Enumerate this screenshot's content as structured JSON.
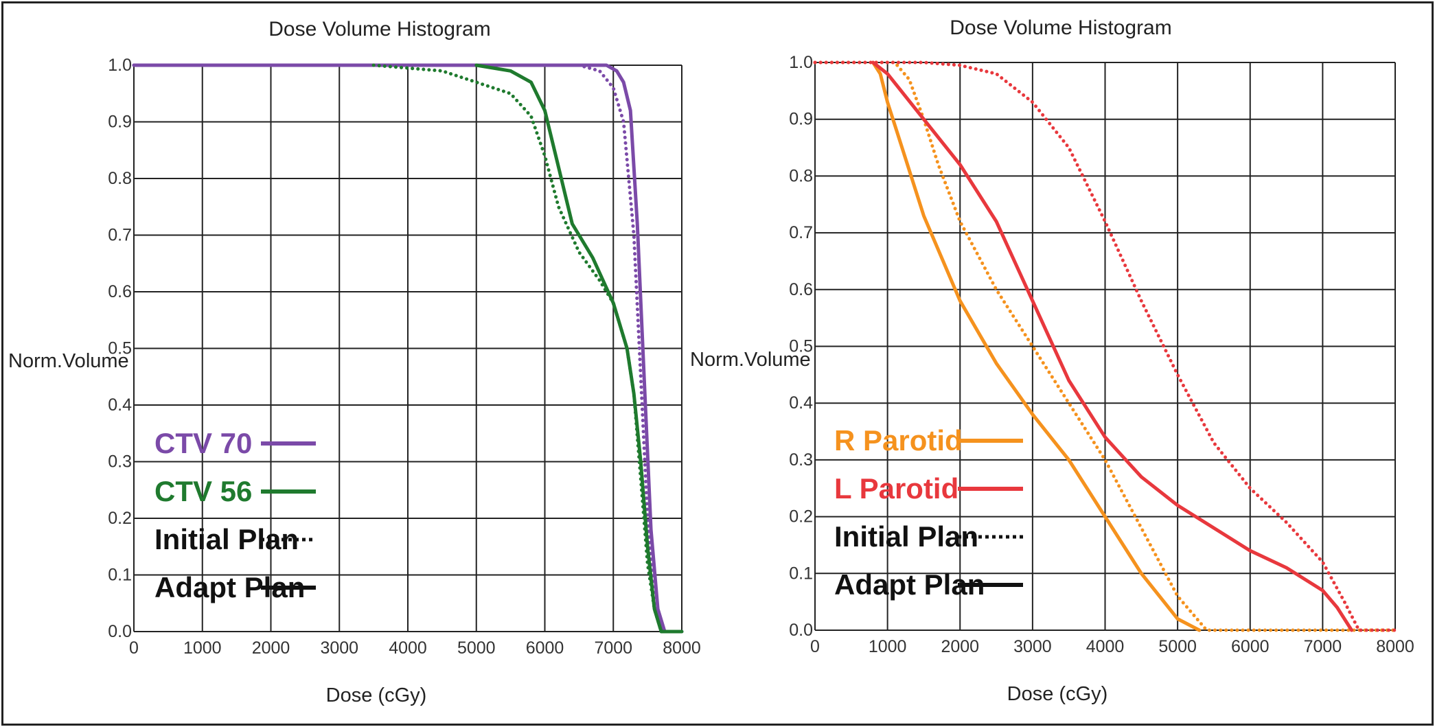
{
  "chart_data": [
    {
      "type": "line",
      "title": "Dose Volume Histogram",
      "xlabel": "Dose (cGy)",
      "ylabel": "Norm.Volume",
      "xlim": [
        0,
        8000
      ],
      "ylim": [
        0,
        1.0
      ],
      "xticks": [
        "0",
        "1000",
        "2000",
        "3000",
        "4000",
        "5000",
        "6000",
        "7000",
        "8000"
      ],
      "yticks": [
        "0.0",
        "0.1",
        "0.2",
        "0.3",
        "0.4",
        "0.5",
        "0.6",
        "0.7",
        "0.8",
        "0.9",
        "1.0"
      ],
      "grid": true,
      "legend": {
        "placement": "bottom-left",
        "entries": [
          {
            "label": "CTV 70",
            "color": "#7b4aa8",
            "style": "solid"
          },
          {
            "label": "CTV 56",
            "color": "#1f7a2e",
            "style": "solid"
          },
          {
            "label": "Initial Plan",
            "color": "#111111",
            "style": "dotted"
          },
          {
            "label": "Adapt Plan",
            "color": "#111111",
            "style": "solid"
          }
        ]
      },
      "series": [
        {
          "structure": "CTV 70",
          "plan": "Initial Plan",
          "color": "#7b4aa8",
          "style": "dotted",
          "x": [
            0,
            6500,
            6800,
            7000,
            7150,
            7300,
            7400,
            7500,
            7600,
            7700,
            8000
          ],
          "y": [
            1.0,
            1.0,
            0.99,
            0.96,
            0.9,
            0.7,
            0.45,
            0.2,
            0.05,
            0.0,
            0.0
          ]
        },
        {
          "structure": "CTV 70",
          "plan": "Adapt Plan",
          "color": "#7b4aa8",
          "style": "solid",
          "x": [
            0,
            6900,
            7050,
            7150,
            7250,
            7350,
            7450,
            7550,
            7650,
            7750,
            8000
          ],
          "y": [
            1.0,
            1.0,
            0.99,
            0.97,
            0.92,
            0.72,
            0.45,
            0.18,
            0.04,
            0.0,
            0.0
          ]
        },
        {
          "structure": "CTV 56",
          "plan": "Initial Plan",
          "color": "#1f7a2e",
          "style": "dotted",
          "x": [
            3500,
            4500,
            5000,
            5500,
            5800,
            6000,
            6200,
            6500,
            6800,
            7000,
            7200,
            7300,
            7400,
            7500,
            7600,
            7700,
            8000
          ],
          "y": [
            1.0,
            0.99,
            0.97,
            0.95,
            0.91,
            0.84,
            0.75,
            0.67,
            0.62,
            0.58,
            0.5,
            0.42,
            0.27,
            0.12,
            0.04,
            0.0,
            0.0
          ]
        },
        {
          "structure": "CTV 56",
          "plan": "Adapt Plan",
          "color": "#1f7a2e",
          "style": "solid",
          "x": [
            5000,
            5500,
            5800,
            6000,
            6200,
            6400,
            6700,
            7000,
            7200,
            7300,
            7400,
            7500,
            7600,
            7700,
            8000
          ],
          "y": [
            1.0,
            0.99,
            0.97,
            0.92,
            0.82,
            0.72,
            0.66,
            0.58,
            0.5,
            0.42,
            0.3,
            0.15,
            0.04,
            0.0,
            0.0
          ]
        }
      ]
    },
    {
      "type": "line",
      "title": "Dose Volume Histogram",
      "xlabel": "Dose (cGy)",
      "ylabel": "Norm.Volume",
      "xlim": [
        0,
        8000
      ],
      "ylim": [
        0,
        1.0
      ],
      "xticks": [
        "0",
        "1000",
        "2000",
        "3000",
        "4000",
        "5000",
        "6000",
        "7000",
        "8000"
      ],
      "yticks": [
        "0.0",
        "0.1",
        "0.2",
        "0.3",
        "0.4",
        "0.5",
        "0.6",
        "0.7",
        "0.8",
        "0.9",
        "1.0"
      ],
      "grid": true,
      "legend": {
        "placement": "bottom-left",
        "entries": [
          {
            "label": "R Parotid",
            "color": "#f5921e",
            "style": "solid"
          },
          {
            "label": "L Parotid",
            "color": "#e8383d",
            "style": "solid"
          },
          {
            "label": "Initial Plan",
            "color": "#111111",
            "style": "dotted"
          },
          {
            "label": "Adapt Plan",
            "color": "#111111",
            "style": "solid"
          }
        ]
      },
      "series": [
        {
          "structure": "R Parotid",
          "plan": "Initial Plan",
          "color": "#f5921e",
          "style": "dotted",
          "x": [
            0,
            1100,
            1300,
            1500,
            1700,
            2000,
            2500,
            3000,
            3500,
            4000,
            4500,
            5000,
            5400,
            8000
          ],
          "y": [
            1.0,
            1.0,
            0.97,
            0.9,
            0.82,
            0.72,
            0.6,
            0.5,
            0.4,
            0.3,
            0.18,
            0.06,
            0.0,
            0.0
          ]
        },
        {
          "structure": "R Parotid",
          "plan": "Adapt Plan",
          "color": "#f5921e",
          "style": "solid",
          "x": [
            800,
            900,
            1000,
            1200,
            1500,
            2000,
            2500,
            3000,
            3500,
            4000,
            4500,
            5000,
            5300
          ],
          "y": [
            1.0,
            0.98,
            0.93,
            0.85,
            0.73,
            0.58,
            0.47,
            0.38,
            0.3,
            0.2,
            0.1,
            0.02,
            0.0
          ]
        },
        {
          "structure": "L Parotid",
          "plan": "Initial Plan",
          "color": "#e8383d",
          "style": "dotted",
          "x": [
            0,
            1500,
            2000,
            2500,
            3000,
            3500,
            4000,
            4500,
            5000,
            5500,
            6000,
            6500,
            7000,
            7300,
            7500,
            8000
          ],
          "y": [
            1.0,
            1.0,
            0.995,
            0.98,
            0.93,
            0.85,
            0.72,
            0.58,
            0.45,
            0.33,
            0.25,
            0.19,
            0.12,
            0.05,
            0.0,
            0.0
          ]
        },
        {
          "structure": "L Parotid",
          "plan": "Adapt Plan",
          "color": "#e8383d",
          "style": "solid",
          "x": [
            800,
            1000,
            1500,
            2000,
            2500,
            3000,
            3500,
            4000,
            4500,
            5000,
            5500,
            6000,
            6500,
            7000,
            7200,
            7400
          ],
          "y": [
            1.0,
            0.98,
            0.9,
            0.82,
            0.72,
            0.58,
            0.44,
            0.34,
            0.27,
            0.22,
            0.18,
            0.14,
            0.11,
            0.07,
            0.04,
            0.0
          ]
        }
      ]
    }
  ]
}
